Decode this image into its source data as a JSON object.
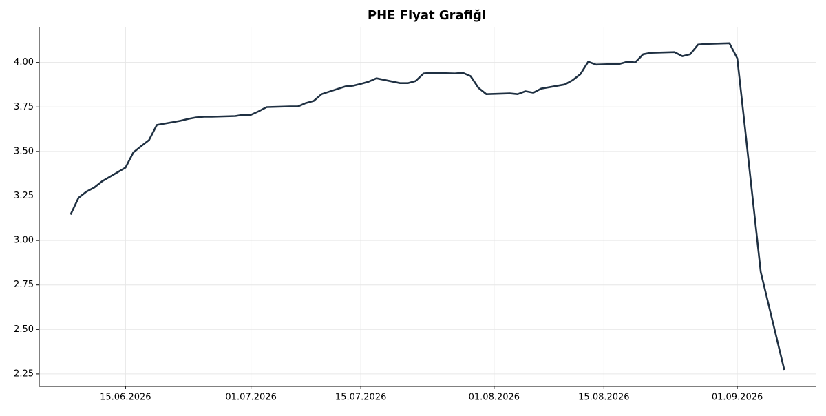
{
  "chart_data": {
    "type": "line",
    "title": "PHE Fiyat Grafiği",
    "x": [
      "08.06.2026",
      "09.06.2026",
      "10.06.2026",
      "11.06.2026",
      "12.06.2026",
      "15.06.2026",
      "16.06.2026",
      "17.06.2026",
      "18.06.2026",
      "19.06.2026",
      "22.06.2026",
      "23.06.2026",
      "24.06.2026",
      "25.06.2026",
      "26.06.2026",
      "29.06.2026",
      "30.06.2026",
      "01.07.2026",
      "02.07.2026",
      "03.07.2026",
      "06.07.2026",
      "07.07.2026",
      "08.07.2026",
      "09.07.2026",
      "10.07.2026",
      "13.07.2026",
      "14.07.2026",
      "15.07.2026",
      "16.07.2026",
      "17.07.2026",
      "20.07.2026",
      "21.07.2026",
      "22.07.2026",
      "23.07.2026",
      "24.07.2026",
      "27.07.2026",
      "28.07.2026",
      "29.07.2026",
      "30.07.2026",
      "31.07.2026",
      "03.08.2026",
      "04.08.2026",
      "05.08.2026",
      "06.08.2026",
      "07.08.2026",
      "10.08.2026",
      "11.08.2026",
      "12.08.2026",
      "13.08.2026",
      "14.08.2026",
      "17.08.2026",
      "18.08.2026",
      "19.08.2026",
      "20.08.2026",
      "21.08.2026",
      "24.08.2026",
      "25.08.2026",
      "26.08.2026",
      "27.08.2026",
      "28.08.2026",
      "31.08.2026",
      "01.09.2026",
      "02.09.2026",
      "03.09.2026",
      "04.09.2026",
      "07.09.2026"
    ],
    "series": [
      {
        "color": "#1f3042",
        "values": [
          3.146,
          3.239,
          3.274,
          3.297,
          3.332,
          3.409,
          3.494,
          3.53,
          3.564,
          3.649,
          3.672,
          3.683,
          3.691,
          3.695,
          3.695,
          3.699,
          3.706,
          3.706,
          3.726,
          3.749,
          3.753,
          3.753,
          3.772,
          3.784,
          3.822,
          3.865,
          3.869,
          3.88,
          3.892,
          3.911,
          3.884,
          3.884,
          3.896,
          3.938,
          3.942,
          3.938,
          3.942,
          3.923,
          3.857,
          3.822,
          3.826,
          3.822,
          3.838,
          3.83,
          3.853,
          3.876,
          3.9,
          3.934,
          4.004,
          3.988,
          3.992,
          4.004,
          4.0,
          4.046,
          4.054,
          4.058,
          4.035,
          4.046,
          4.1,
          4.104,
          4.108,
          4.023,
          3.625,
          3.224,
          2.822,
          2.273
        ]
      }
    ],
    "xlim": [
      "04.06.2026",
      "11.09.2026"
    ],
    "xticks": [
      "15.06.2026",
      "01.07.2026",
      "15.07.2026",
      "01.08.2026",
      "15.08.2026",
      "01.09.2026"
    ],
    "ylim": [
      2.18,
      4.2
    ],
    "yticks": [
      2.25,
      {
        "value": 2.5,
        "label": "2.50"
      },
      2.75,
      {
        "value": 3,
        "label": "3.00"
      },
      3.25,
      {
        "value": 3.5,
        "label": "3.50"
      },
      3.75,
      {
        "value": 4,
        "label": "4.00"
      }
    ],
    "grid": true
  }
}
